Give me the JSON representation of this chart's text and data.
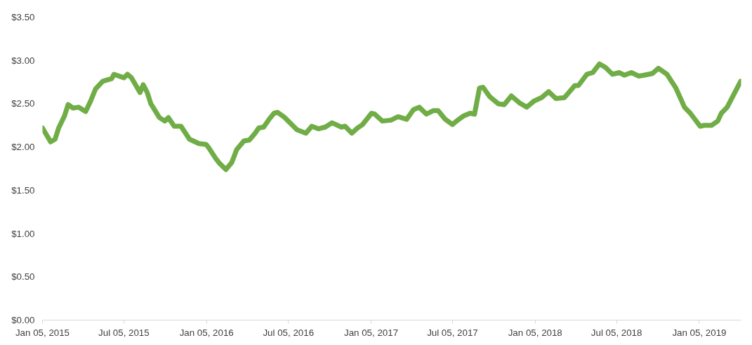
{
  "chart_data": {
    "type": "line",
    "xlim": [
      "2015-01-05",
      "2019-04-08"
    ],
    "ylim": [
      0,
      3.5
    ],
    "xticks": [
      {
        "value": "2015-01-05",
        "label": "Jan 05, 2015"
      },
      {
        "value": "2015-07-05",
        "label": "Jul 05, 2015"
      },
      {
        "value": "2016-01-05",
        "label": "Jan 05, 2016"
      },
      {
        "value": "2016-07-05",
        "label": "Jul 05, 2016"
      },
      {
        "value": "2017-01-05",
        "label": "Jan 05, 2017"
      },
      {
        "value": "2017-07-05",
        "label": "Jul 05, 2017"
      },
      {
        "value": "2018-01-05",
        "label": "Jan 05, 2018"
      },
      {
        "value": "2018-07-05",
        "label": "Jul 05, 2018"
      },
      {
        "value": "2019-01-05",
        "label": "Jan 05, 2019"
      }
    ],
    "yticks": [
      {
        "value": 0,
        "label": "$0.00"
      },
      {
        "value": 0.5,
        "label": "$0.50"
      },
      {
        "value": 1,
        "label": "$1.00"
      },
      {
        "value": 1.5,
        "label": "$1.50"
      },
      {
        "value": 2,
        "label": "$2.00"
      },
      {
        "value": 2.5,
        "label": "$2.50"
      },
      {
        "value": 3,
        "label": "$3.00"
      },
      {
        "value": 3.5,
        "label": "$3.50"
      }
    ],
    "grid": false,
    "marker": "none",
    "line_style": "solid",
    "x": [
      "2015-01-05",
      "2015-01-23",
      "2015-02-02",
      "2015-02-10",
      "2015-02-23",
      "2015-03-03",
      "2015-03-14",
      "2015-03-26",
      "2015-04-11",
      "2015-04-22",
      "2015-05-03",
      "2015-05-19",
      "2015-06-08",
      "2015-06-13",
      "2015-07-05",
      "2015-07-13",
      "2015-07-22",
      "2015-08-10",
      "2015-08-17",
      "2015-08-26",
      "2015-09-03",
      "2015-09-22",
      "2015-10-04",
      "2015-10-12",
      "2015-10-25",
      "2015-11-09",
      "2015-11-28",
      "2015-12-19",
      "2016-01-04",
      "2016-01-10",
      "2016-01-25",
      "2016-02-03",
      "2016-02-17",
      "2016-03-01",
      "2016-03-12",
      "2016-03-28",
      "2016-04-09",
      "2016-04-22",
      "2016-04-30",
      "2016-05-11",
      "2016-05-23",
      "2016-06-03",
      "2016-06-11",
      "2016-06-27",
      "2016-07-24",
      "2016-08-13",
      "2016-08-26",
      "2016-09-10",
      "2016-09-25",
      "2016-10-10",
      "2016-10-31",
      "2016-11-08",
      "2016-11-23",
      "2016-12-06",
      "2016-12-17",
      "2017-01-06",
      "2017-01-13",
      "2017-01-30",
      "2017-02-18",
      "2017-03-06",
      "2017-03-25",
      "2017-04-09",
      "2017-04-22",
      "2017-05-08",
      "2017-05-23",
      "2017-06-03",
      "2017-06-19",
      "2017-07-05",
      "2017-07-14",
      "2017-07-30",
      "2017-08-13",
      "2017-08-23",
      "2017-09-03",
      "2017-09-11",
      "2017-09-26",
      "2017-10-15",
      "2017-10-28",
      "2017-11-13",
      "2017-12-01",
      "2017-12-17",
      "2018-01-02",
      "2018-01-19",
      "2018-02-04",
      "2018-02-20",
      "2018-03-11",
      "2018-04-03",
      "2018-04-11",
      "2018-04-30",
      "2018-05-13",
      "2018-05-28",
      "2018-06-10",
      "2018-06-26",
      "2018-07-11",
      "2018-07-22",
      "2018-08-07",
      "2018-08-23",
      "2018-09-04",
      "2018-09-23",
      "2018-10-06",
      "2018-10-25",
      "2018-11-14",
      "2018-12-03",
      "2018-12-16",
      "2019-01-07",
      "2019-01-16",
      "2019-02-01",
      "2019-02-15",
      "2019-02-23",
      "2019-03-08",
      "2019-03-23",
      "2019-04-07"
    ],
    "series": [
      {
        "color": "#70ad47",
        "values": [
          2.22,
          2.06,
          2.09,
          2.22,
          2.36,
          2.49,
          2.45,
          2.46,
          2.41,
          2.53,
          2.67,
          2.76,
          2.79,
          2.84,
          2.8,
          2.84,
          2.8,
          2.63,
          2.72,
          2.63,
          2.5,
          2.34,
          2.3,
          2.34,
          2.24,
          2.24,
          2.09,
          2.04,
          2.03,
          1.99,
          1.87,
          1.81,
          1.74,
          1.82,
          1.97,
          2.07,
          2.08,
          2.16,
          2.22,
          2.23,
          2.32,
          2.39,
          2.4,
          2.34,
          2.2,
          2.16,
          2.24,
          2.21,
          2.23,
          2.28,
          2.23,
          2.24,
          2.16,
          2.22,
          2.26,
          2.39,
          2.38,
          2.3,
          2.31,
          2.35,
          2.32,
          2.43,
          2.46,
          2.38,
          2.42,
          2.42,
          2.32,
          2.26,
          2.3,
          2.36,
          2.39,
          2.38,
          2.68,
          2.69,
          2.58,
          2.5,
          2.49,
          2.59,
          2.51,
          2.46,
          2.53,
          2.57,
          2.64,
          2.56,
          2.57,
          2.71,
          2.71,
          2.84,
          2.86,
          2.96,
          2.92,
          2.84,
          2.86,
          2.83,
          2.86,
          2.82,
          2.83,
          2.85,
          2.91,
          2.84,
          2.68,
          2.46,
          2.39,
          2.24,
          2.25,
          2.25,
          2.3,
          2.39,
          2.46,
          2.61,
          2.76
        ]
      }
    ]
  }
}
